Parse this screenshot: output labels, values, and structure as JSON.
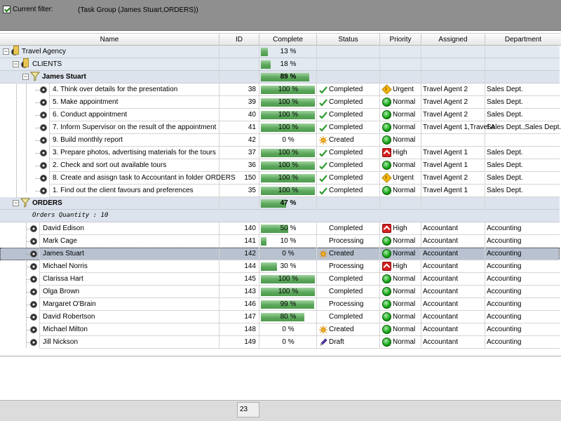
{
  "filter": {
    "label": "Current filter:",
    "value": "(Task Group  (James Stuart,ORDERS))"
  },
  "columns": {
    "name": "Name",
    "id": "ID",
    "complete": "Complete",
    "status": "Status",
    "priority": "Priority",
    "assigned": "Assigned",
    "department": "Department"
  },
  "groups": {
    "travel_agency": {
      "label": "Travel Agency",
      "complete": "13 %",
      "progress": 0.13
    },
    "clients": {
      "label": "CLIENTS",
      "complete": "18 %",
      "progress": 0.18
    },
    "james_stuart": {
      "label": "James Stuart",
      "complete": "89 %",
      "progress": 0.89
    },
    "orders": {
      "label": "ORDERS",
      "complete": "47 %",
      "progress": 0.47
    },
    "orders_quantity": "Orders Quantity : 10"
  },
  "tasks": [
    {
      "name": "4. Think over details for the presentation",
      "id": "38",
      "complete": "100 %",
      "progress": 1.0,
      "status": "Completed",
      "status_icon": "check-icon",
      "priority": "Urgent",
      "priority_icon": "urgent-icon",
      "assigned": "Travel Agent 2",
      "department": "Sales Dept."
    },
    {
      "name": "5. Make appointment",
      "id": "39",
      "complete": "100 %",
      "progress": 1.0,
      "status": "Completed",
      "status_icon": "check-icon",
      "priority": "Normal",
      "priority_icon": "normal-icon",
      "assigned": "Travel Agent 2",
      "department": "Sales Dept."
    },
    {
      "name": "6. Conduct appointment",
      "id": "40",
      "complete": "100 %",
      "progress": 1.0,
      "status": "Completed",
      "status_icon": "check-icon",
      "priority": "Normal",
      "priority_icon": "normal-icon",
      "assigned": "Travel Agent 2",
      "department": "Sales Dept."
    },
    {
      "name": "7. Inform Supervisor on the result of the appointment",
      "id": "41",
      "complete": "100 %",
      "progress": 1.0,
      "status": "Completed",
      "status_icon": "check-icon",
      "priority": "Normal",
      "priority_icon": "normal-icon",
      "assigned": "Travel Agent 1,Travel A",
      "department": "Sales Dept.,Sales Dept."
    },
    {
      "name": "9. Build monthly report",
      "id": "42",
      "complete": "0 %",
      "progress": 0.0,
      "status": "Created",
      "status_icon": "sun-icon",
      "priority": "Normal",
      "priority_icon": "normal-icon",
      "assigned": "",
      "department": ""
    },
    {
      "name": "3. Prepare photos, advertising materials for the tours",
      "id": "37",
      "complete": "100 %",
      "progress": 1.0,
      "status": "Completed",
      "status_icon": "check-icon",
      "priority": "High",
      "priority_icon": "high-icon",
      "assigned": "Travel Agent 1",
      "department": "Sales Dept."
    },
    {
      "name": "2. Check and sort out available tours",
      "id": "36",
      "complete": "100 %",
      "progress": 1.0,
      "status": "Completed",
      "status_icon": "check-icon",
      "priority": "Normal",
      "priority_icon": "normal-icon",
      "assigned": "Travel Agent 1",
      "department": "Sales Dept."
    },
    {
      "name": "8. Create and asisgn task to Accountant in folder ORDERS",
      "id": "150",
      "complete": "100 %",
      "progress": 1.0,
      "status": "Completed",
      "status_icon": "check-icon",
      "priority": "Urgent",
      "priority_icon": "urgent-icon",
      "assigned": "Travel Agent 2",
      "department": "Sales Dept."
    },
    {
      "name": "1. Find out the client favours and preferences",
      "id": "35",
      "complete": "100 %",
      "progress": 1.0,
      "status": "Completed",
      "status_icon": "check-icon",
      "priority": "Normal",
      "priority_icon": "normal-icon",
      "assigned": "Travel Agent 1",
      "department": "Sales Dept."
    }
  ],
  "orders": [
    {
      "name": "David Edison",
      "id": "140",
      "complete": "50 %",
      "progress": 0.5,
      "status": "Completed",
      "status_icon": "",
      "priority": "High",
      "priority_icon": "high-icon",
      "assigned": "Accountant",
      "department": "Accounting"
    },
    {
      "name": "Mark Cage",
      "id": "141",
      "complete": "10 %",
      "progress": 0.1,
      "status": "Processing",
      "status_icon": "",
      "priority": "Normal",
      "priority_icon": "normal-icon",
      "assigned": "Accountant",
      "department": "Accounting"
    },
    {
      "name": "James Stuart",
      "id": "142",
      "complete": "0 %",
      "progress": 0.0,
      "status": "Created",
      "status_icon": "sun-icon",
      "priority": "Normal",
      "priority_icon": "normal-icon",
      "assigned": "Accountant",
      "department": "Accounting",
      "selected": true
    },
    {
      "name": "Michael Norris",
      "id": "144",
      "complete": "30 %",
      "progress": 0.3,
      "status": "Processing",
      "status_icon": "",
      "priority": "High",
      "priority_icon": "high-icon",
      "assigned": "Accountant",
      "department": "Accounting"
    },
    {
      "name": "Clarissa Hart",
      "id": "145",
      "complete": "100 %",
      "progress": 1.0,
      "status": "Completed",
      "status_icon": "",
      "priority": "Normal",
      "priority_icon": "normal-icon",
      "assigned": "Accountant",
      "department": "Accounting"
    },
    {
      "name": "Olga Brown",
      "id": "143",
      "complete": "100 %",
      "progress": 1.0,
      "status": "Completed",
      "status_icon": "",
      "priority": "Normal",
      "priority_icon": "normal-icon",
      "assigned": "Accountant",
      "department": "Accounting"
    },
    {
      "name": "Margaret O'Brain",
      "id": "146",
      "complete": "99 %",
      "progress": 0.99,
      "status": "Processing",
      "status_icon": "",
      "priority": "Normal",
      "priority_icon": "normal-icon",
      "assigned": "Accountant",
      "department": "Accounting"
    },
    {
      "name": "David Robertson",
      "id": "147",
      "complete": "80 %",
      "progress": 0.8,
      "status": "Completed",
      "status_icon": "",
      "priority": "Normal",
      "priority_icon": "normal-icon",
      "assigned": "Accountant",
      "department": "Accounting"
    },
    {
      "name": "Michael Milton",
      "id": "148",
      "complete": "0 %",
      "progress": 0.0,
      "status": "Created",
      "status_icon": "sun-icon",
      "priority": "Normal",
      "priority_icon": "normal-icon",
      "assigned": "Accountant",
      "department": "Accounting"
    },
    {
      "name": "Jill Nickson",
      "id": "149",
      "complete": "0 %",
      "progress": 0.0,
      "status": "Draft",
      "status_icon": "pencil-icon",
      "priority": "Normal",
      "priority_icon": "normal-icon",
      "assigned": "Accountant",
      "department": "Accounting"
    }
  ],
  "footer": {
    "count": "23"
  }
}
